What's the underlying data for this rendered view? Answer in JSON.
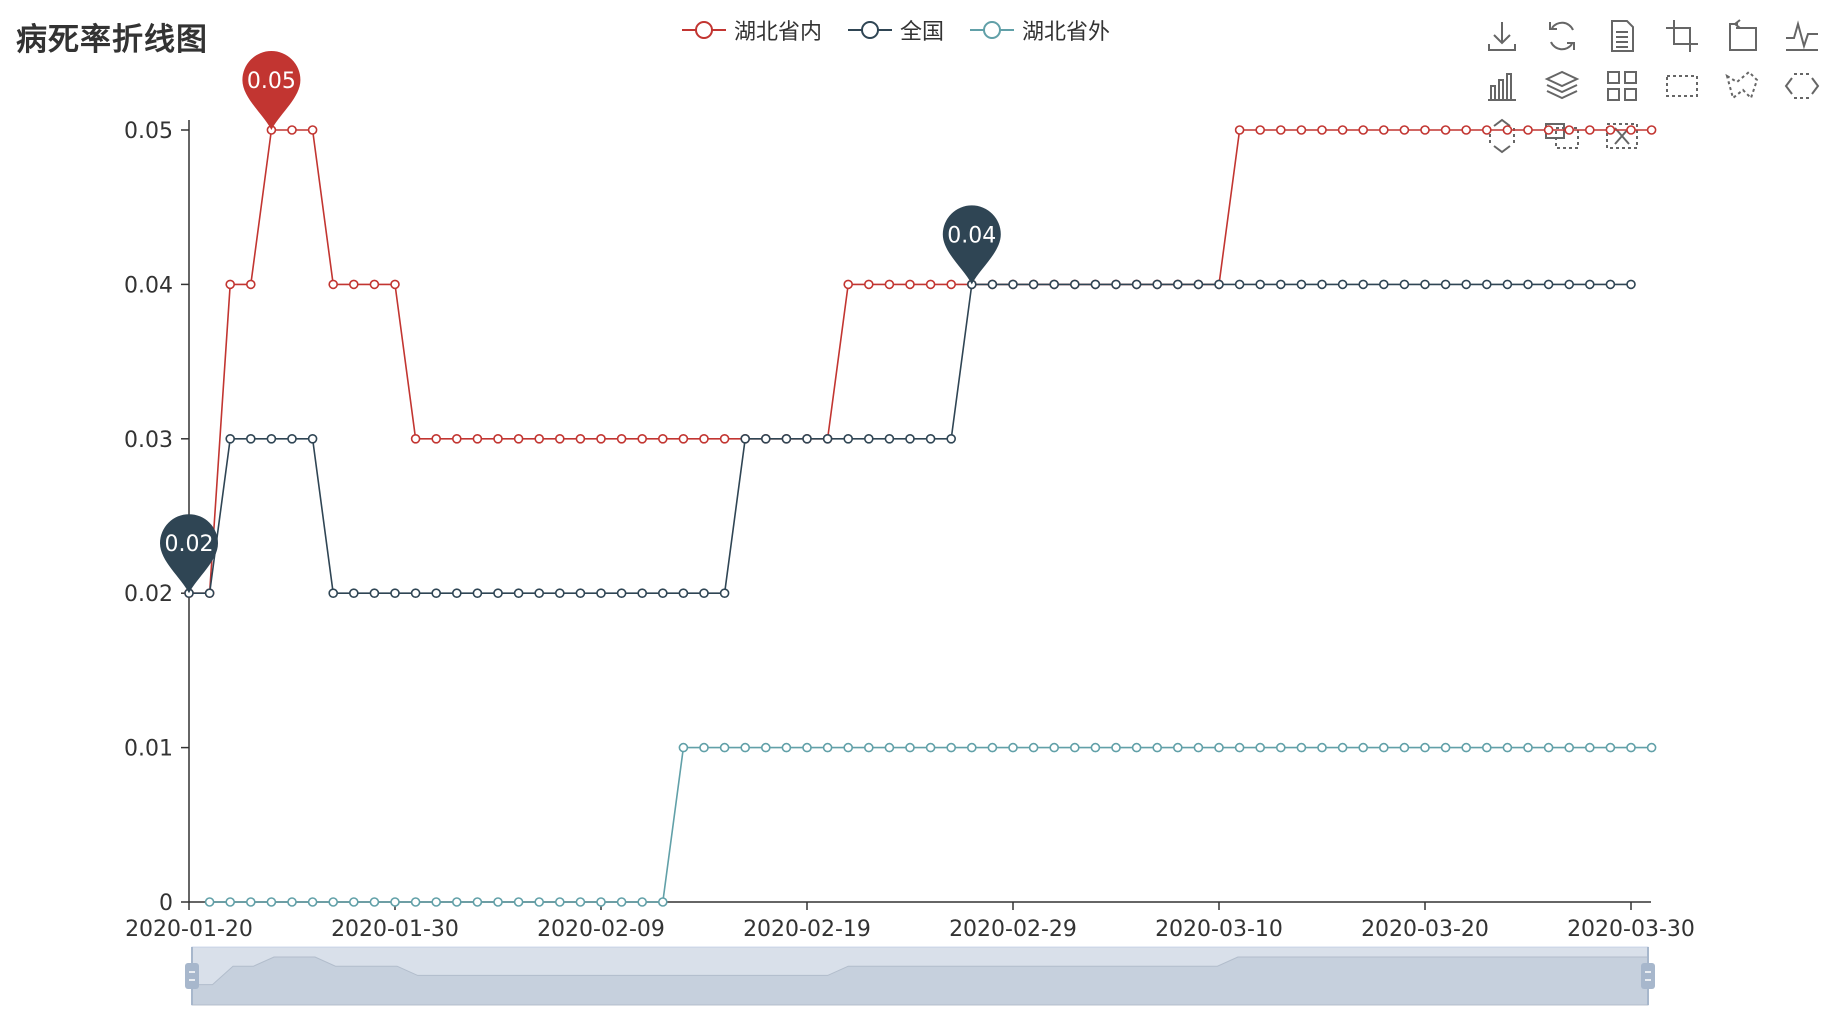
{
  "chart_data": {
    "type": "line",
    "title": "病死率折线图",
    "x": [
      "2020-01-20",
      "2020-01-21",
      "2020-01-22",
      "2020-01-23",
      "2020-01-24",
      "2020-01-25",
      "2020-01-26",
      "2020-01-27",
      "2020-01-28",
      "2020-01-29",
      "2020-01-30",
      "2020-01-31",
      "2020-02-01",
      "2020-02-02",
      "2020-02-03",
      "2020-02-04",
      "2020-02-05",
      "2020-02-06",
      "2020-02-07",
      "2020-02-08",
      "2020-02-09",
      "2020-02-10",
      "2020-02-11",
      "2020-02-12",
      "2020-02-13",
      "2020-02-14",
      "2020-02-15",
      "2020-02-16",
      "2020-02-17",
      "2020-02-18",
      "2020-02-19",
      "2020-02-20",
      "2020-02-21",
      "2020-02-22",
      "2020-02-23",
      "2020-02-24",
      "2020-02-25",
      "2020-02-26",
      "2020-02-27",
      "2020-02-28",
      "2020-02-29",
      "2020-03-01",
      "2020-03-02",
      "2020-03-03",
      "2020-03-04",
      "2020-03-05",
      "2020-03-06",
      "2020-03-07",
      "2020-03-08",
      "2020-03-09",
      "2020-03-10",
      "2020-03-11",
      "2020-03-12",
      "2020-03-13",
      "2020-03-14",
      "2020-03-15",
      "2020-03-16",
      "2020-03-17",
      "2020-03-18",
      "2020-03-19",
      "2020-03-20",
      "2020-03-21",
      "2020-03-22",
      "2020-03-23",
      "2020-03-24",
      "2020-03-25",
      "2020-03-26",
      "2020-03-27",
      "2020-03-28",
      "2020-03-29",
      "2020-03-30",
      "2020-03-31"
    ],
    "x_tick_labels": [
      "2020-01-20",
      "2020-01-30",
      "2020-02-09",
      "2020-02-19",
      "2020-02-29",
      "2020-03-10",
      "2020-03-20",
      "2020-03-30"
    ],
    "y_tick_labels": [
      "0",
      "0.01",
      "0.02",
      "0.03",
      "0.04",
      "0.05"
    ],
    "ylim": [
      0,
      0.05
    ],
    "series": [
      {
        "name": "湖北省内",
        "color": "#c23531",
        "values": [
          0.02,
          0.02,
          0.04,
          0.04,
          0.05,
          0.05,
          0.05,
          0.04,
          0.04,
          0.04,
          0.04,
          0.03,
          0.03,
          0.03,
          0.03,
          0.03,
          0.03,
          0.03,
          0.03,
          0.03,
          0.03,
          0.03,
          0.03,
          0.03,
          0.03,
          0.03,
          0.03,
          0.03,
          0.03,
          0.03,
          0.03,
          0.03,
          0.04,
          0.04,
          0.04,
          0.04,
          0.04,
          0.04,
          0.04,
          0.04,
          0.04,
          0.04,
          0.04,
          0.04,
          0.04,
          0.04,
          0.04,
          0.04,
          0.04,
          0.04,
          0.04,
          0.05,
          0.05,
          0.05,
          0.05,
          0.05,
          0.05,
          0.05,
          0.05,
          0.05,
          0.05,
          0.05,
          0.05,
          0.05,
          0.05,
          0.05,
          0.05,
          0.05,
          0.05,
          0.05,
          0.05,
          0.05
        ],
        "max_label": "0.05"
      },
      {
        "name": "全国",
        "color": "#2f4554",
        "values": [
          0.02,
          0.02,
          0.03,
          0.03,
          0.03,
          0.03,
          0.03,
          0.02,
          0.02,
          0.02,
          0.02,
          0.02,
          0.02,
          0.02,
          0.02,
          0.02,
          0.02,
          0.02,
          0.02,
          0.02,
          0.02,
          0.02,
          0.02,
          0.02,
          0.02,
          0.02,
          0.02,
          0.03,
          0.03,
          0.03,
          0.03,
          0.03,
          0.03,
          0.03,
          0.03,
          0.03,
          0.03,
          0.03,
          0.04,
          0.04,
          0.04,
          0.04,
          0.04,
          0.04,
          0.04,
          0.04,
          0.04,
          0.04,
          0.04,
          0.04,
          0.04,
          0.04,
          0.04,
          0.04,
          0.04,
          0.04,
          0.04,
          0.04,
          0.04,
          0.04,
          0.04,
          0.04,
          0.04,
          0.04,
          0.04,
          0.04,
          0.04,
          0.04,
          0.04,
          0.04,
          0.04,
          null
        ],
        "min_label": "0.02",
        "max_label": "0.04"
      },
      {
        "name": "湖北省外",
        "color": "#61a0a8",
        "values": [
          null,
          0,
          0,
          0,
          0,
          0,
          0,
          0,
          0,
          0,
          0,
          0,
          0,
          0,
          0,
          0,
          0,
          0,
          0,
          0,
          0,
          0,
          0,
          0,
          0.01,
          0.01,
          0.01,
          0.01,
          0.01,
          0.01,
          0.01,
          0.01,
          0.01,
          0.01,
          0.01,
          0.01,
          0.01,
          0.01,
          0.01,
          0.01,
          0.01,
          0.01,
          0.01,
          0.01,
          0.01,
          0.01,
          0.01,
          0.01,
          0.01,
          0.01,
          0.01,
          0.01,
          0.01,
          0.01,
          0.01,
          0.01,
          0.01,
          0.01,
          0.01,
          0.01,
          0.01,
          0.01,
          0.01,
          0.01,
          0.01,
          0.01,
          0.01,
          0.01,
          0.01,
          0.01,
          0.01,
          0.01
        ]
      }
    ],
    "legend_placement": "top-center",
    "grid": false,
    "datazoom": {
      "start_percent": 0,
      "end_percent": 100
    }
  },
  "toolbox": {
    "icons": [
      "download-icon",
      "refresh-icon",
      "data-view-icon",
      "zoom-icon",
      "zoom-reset-icon",
      "line-type-icon",
      "bar-type-icon",
      "stack-icon",
      "tiled-icon",
      "rect-select-icon",
      "polygon-select-icon",
      "line-x-select-icon",
      "line-y-select-icon",
      "keep-select-icon",
      "clear-select-icon"
    ]
  }
}
